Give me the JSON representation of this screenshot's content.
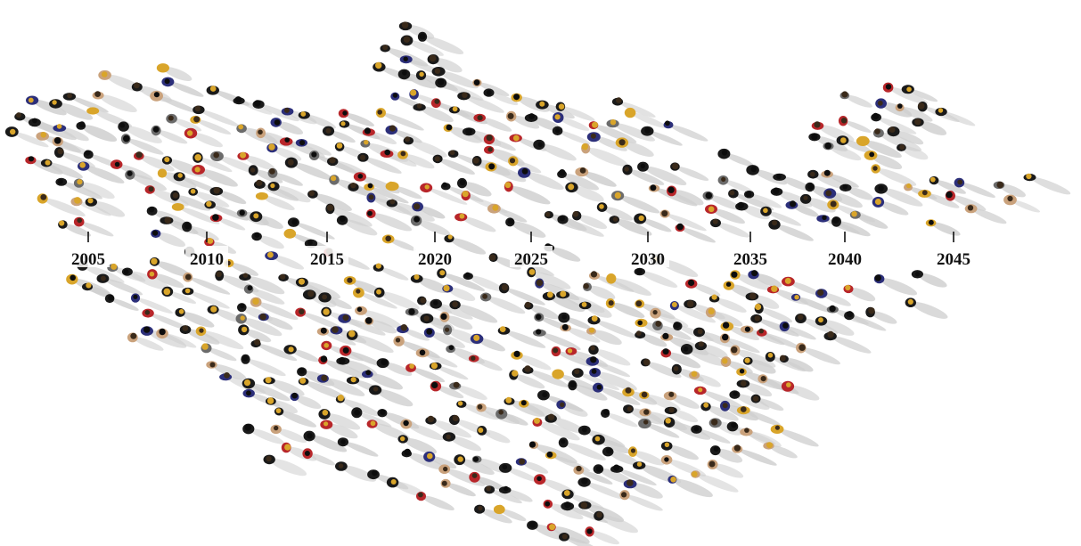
{
  "timeline": {
    "ticks": [
      "2005",
      "2010",
      "2015",
      "2020",
      "2025",
      "2030",
      "2035",
      "2040",
      "2045"
    ]
  },
  "crowd": {
    "figure_count": 520,
    "palette": {
      "shadow": "#cfcfcf",
      "dark": "#1a1a1a",
      "hair_gold": "#d9a52a",
      "jacket_blue": "#2c2f7a",
      "jacket_red": "#b8262a",
      "grey": "#6b6b6b",
      "skin": "#caa27c"
    }
  }
}
